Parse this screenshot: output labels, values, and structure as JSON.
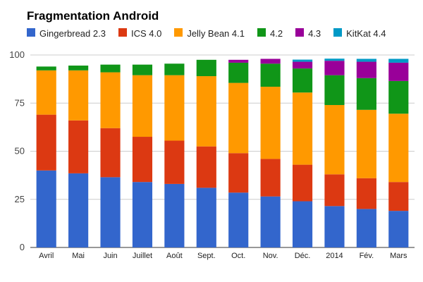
{
  "chart_data": {
    "type": "bar",
    "stacked": true,
    "title": "Fragmentation Android",
    "categories": [
      "Avril",
      "Mai",
      "Juin",
      "Juillet",
      "Août",
      "Sept.",
      "Oct.",
      "Nov.",
      "Déc.",
      "2014",
      "Fév.",
      "Mars"
    ],
    "ylim": [
      0,
      100
    ],
    "yticks": [
      "0",
      "25",
      "50",
      "75",
      "100"
    ],
    "grid": true,
    "legend_position": "top",
    "series": [
      {
        "name": "Gingerbread 2.3",
        "color": "#3366cc",
        "values": [
          40,
          38.5,
          36.5,
          34,
          33,
          31,
          28.5,
          26.5,
          24,
          21.5,
          20,
          19
        ]
      },
      {
        "name": "ICS 4.0",
        "color": "#dc3912",
        "values": [
          29,
          27.5,
          25.5,
          23.5,
          22.5,
          21.5,
          20.5,
          19.5,
          19,
          16.5,
          16,
          15
        ]
      },
      {
        "name": "Jelly Bean 4.1",
        "color": "#ff9900",
        "values": [
          23,
          26,
          29,
          32,
          34,
          36.5,
          36.5,
          37.5,
          37.5,
          36,
          35.5,
          35.5
        ]
      },
      {
        "name": "4.2",
        "color": "#109618",
        "values": [
          2,
          2.5,
          4,
          5.5,
          6,
          8.5,
          10.5,
          12,
          12.5,
          15.5,
          16.5,
          17
        ]
      },
      {
        "name": "4.3",
        "color": "#990099",
        "values": [
          0,
          0,
          0,
          0,
          0,
          0,
          1.5,
          2.5,
          3.5,
          7.5,
          8.5,
          9.5
        ]
      },
      {
        "name": "KitKat 4.4",
        "color": "#0099c6",
        "values": [
          0,
          0,
          0,
          0,
          0,
          0,
          0,
          0,
          1.1,
          1.1,
          1.5,
          2
        ]
      }
    ]
  }
}
